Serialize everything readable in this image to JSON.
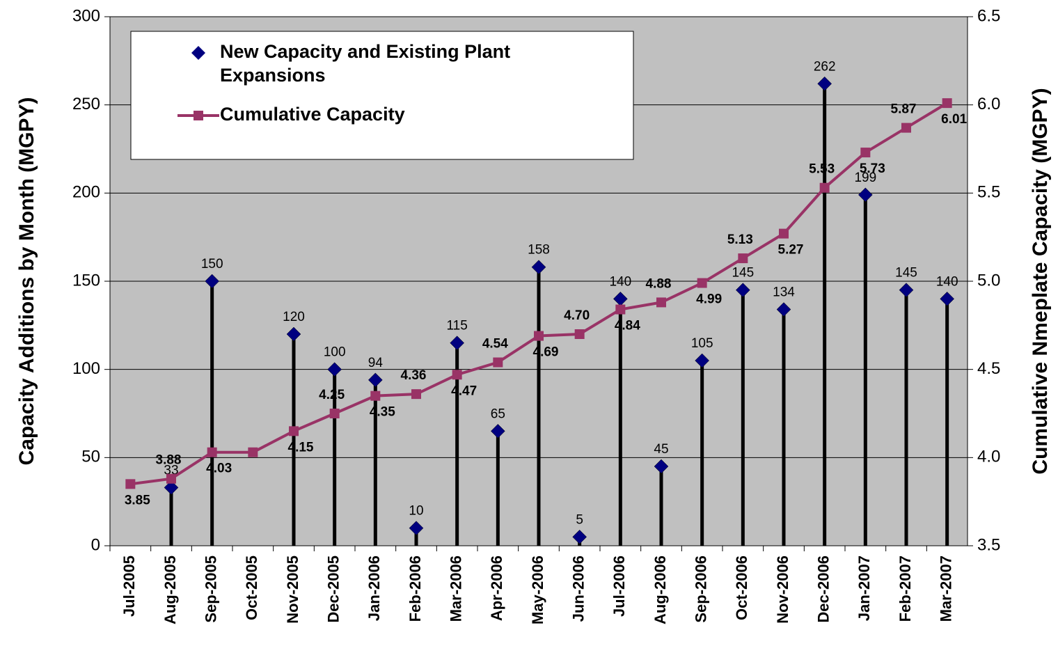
{
  "chart_data": {
    "type": "combo",
    "y_label": "Capacity Additions by Month (MGPY)",
    "y2_label": "Cumulative Nmeplate Capacity (MGPY)",
    "categories": [
      "Jul-2005",
      "Aug-2005",
      "Sep-2005",
      "Oct-2005",
      "Nov-2005",
      "Dec-2005",
      "Jan-2006",
      "Feb-2006",
      "Mar-2006",
      "Apr-2006",
      "May-2006",
      "Jun-2006",
      "Jul-2006",
      "Aug-2006",
      "Sep-2006",
      "Oct-2006",
      "Nov-2006",
      "Dec-2006",
      "Jan-2007",
      "Feb-2007",
      "Mar-2007"
    ],
    "series": [
      {
        "name": "New Capacity and Existing Plant Expansions",
        "type": "stem",
        "color": "#000080",
        "values": [
          null,
          33,
          150,
          null,
          120,
          100,
          94,
          10,
          115,
          65,
          158,
          5,
          140,
          45,
          105,
          145,
          134,
          262,
          199,
          145,
          140
        ]
      },
      {
        "name": "Cumulative Capacity",
        "type": "line",
        "axis": "y2",
        "color": "#993366",
        "values": [
          3.85,
          3.88,
          4.03,
          4.03,
          4.15,
          4.25,
          4.35,
          4.36,
          4.47,
          4.54,
          4.69,
          4.7,
          4.84,
          4.88,
          4.99,
          5.13,
          5.27,
          5.53,
          5.73,
          5.87,
          6.01
        ],
        "value_labels": [
          "3.85",
          "3.88",
          "4.03",
          null,
          "4.15",
          "4.25",
          "4.35",
          "4.36",
          "4.47",
          "4.54",
          "4.69",
          "4.70",
          "4.84",
          "4.88",
          "4.99",
          "5.13",
          "5.27",
          "5.53",
          "5.73",
          "5.87",
          "6.01"
        ]
      }
    ],
    "ylim": [
      0,
      300
    ],
    "yticks": [
      0,
      50,
      100,
      150,
      200,
      250,
      300
    ],
    "y2lim": [
      3.5,
      6.5
    ],
    "y2ticks": [
      3.5,
      {
        "value": 4,
        "label": "4.0"
      },
      4.5,
      {
        "value": 5,
        "label": "5.0"
      },
      5.5,
      {
        "value": 6,
        "label": "6.0"
      },
      6.5
    ],
    "grid": true,
    "legend": "top-left"
  }
}
